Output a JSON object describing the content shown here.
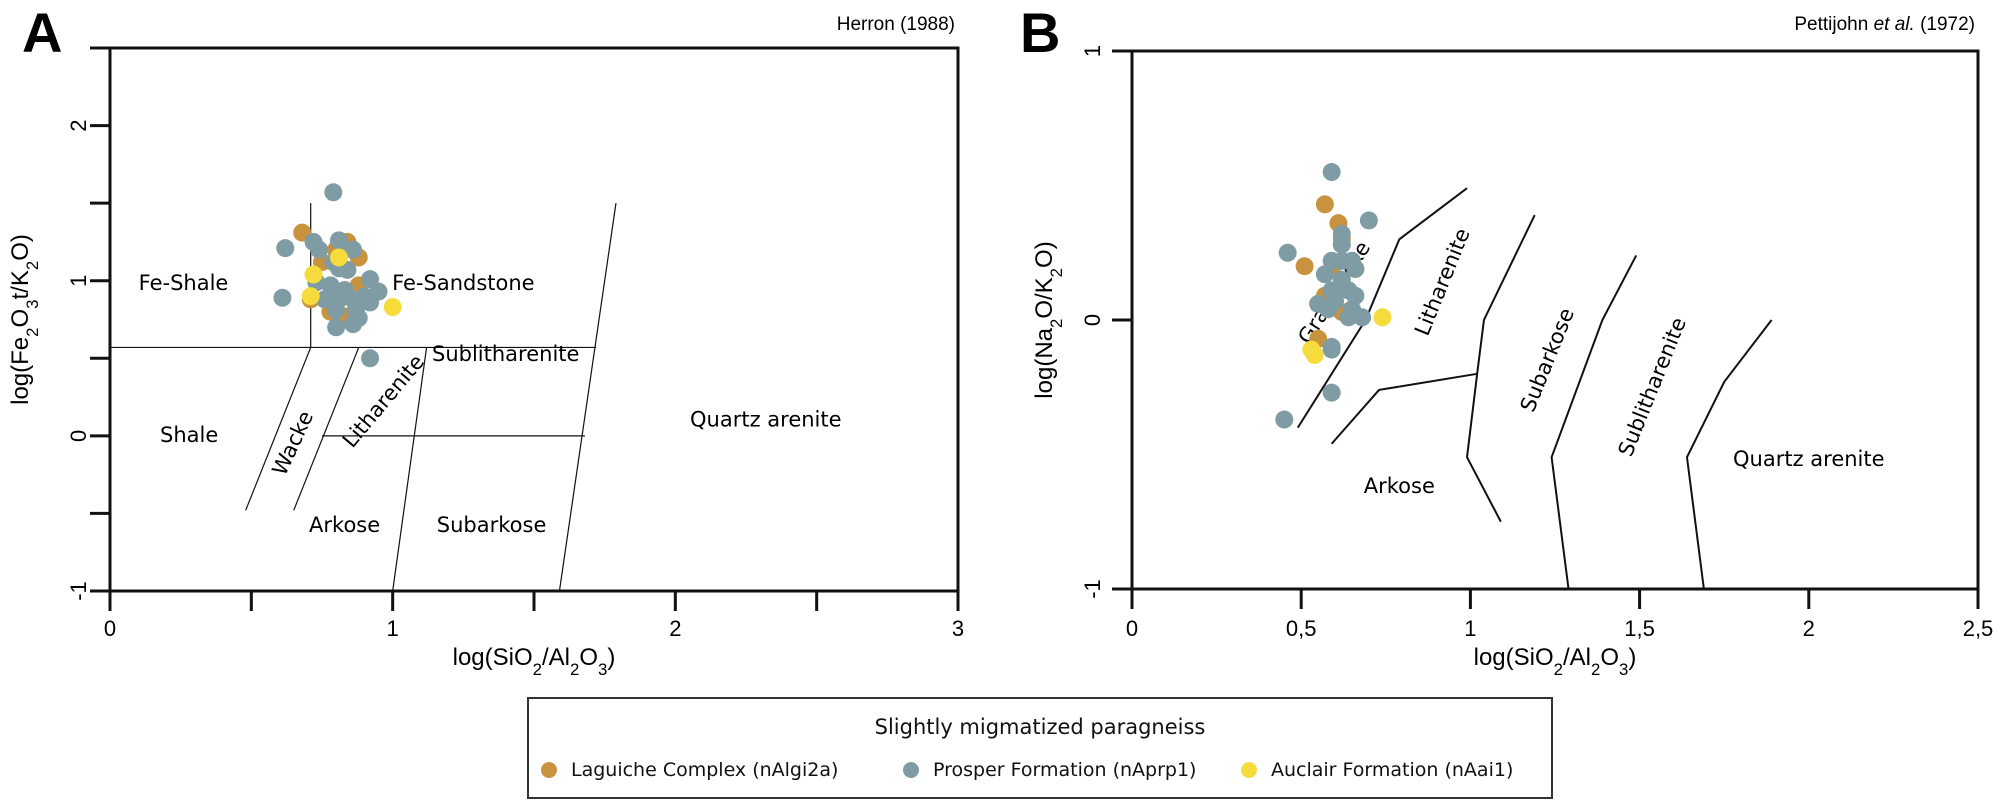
{
  "legend": {
    "title": "Slightly migmatized paragneiss",
    "items": [
      {
        "label": "Laguiche Complex (nAlgi2a)",
        "color": "#C8923E"
      },
      {
        "label": "Prosper Formation (nAprp1)",
        "color": "#7F9CA5"
      },
      {
        "label": "Auclair Formation (nAai1)",
        "color": "#F5DC3C"
      }
    ]
  },
  "chart_data": [
    {
      "panel": "A",
      "type": "scatter",
      "reference": "Herron (1988)",
      "xlabel": "log(SiO2/Al2O3)",
      "ylabel": "log(Fe2O3t/K2O)",
      "xlim": [
        0,
        3
      ],
      "ylim": [
        -1,
        2.5
      ],
      "xticks": [
        0,
        0.5,
        1,
        1.5,
        2,
        2.5,
        3
      ],
      "xtick_labels": [
        "0",
        "",
        "1",
        "",
        "2",
        "",
        "3"
      ],
      "yticks": [
        -1,
        -0.5,
        0,
        0.5,
        1,
        1.5,
        2,
        2.5
      ],
      "ytick_labels": [
        "-1",
        "",
        "0",
        "",
        "1",
        "",
        "2",
        ""
      ],
      "grid": false,
      "boundaries": [
        [
          [
            0.71,
            1.5
          ],
          [
            0.71,
            0.57
          ]
        ],
        [
          [
            0,
            0.57
          ],
          [
            1.72,
            0.57
          ]
        ],
        [
          [
            0.71,
            0.57
          ],
          [
            0.48,
            -0.48
          ]
        ],
        [
          [
            0.88,
            0.57
          ],
          [
            0.65,
            -0.48
          ]
        ],
        [
          [
            1.12,
            0.57
          ],
          [
            1.0,
            -1.0
          ]
        ],
        [
          [
            1.79,
            1.5
          ],
          [
            1.59,
            -1.0
          ]
        ],
        [
          [
            0.75,
            0
          ],
          [
            1.68,
            0
          ]
        ]
      ],
      "regions": [
        {
          "label": "Fe-Shale",
          "x": 0.26,
          "y": 0.98,
          "rotate": 0
        },
        {
          "label": "Fe-Sandstone",
          "x": 1.25,
          "y": 0.98,
          "rotate": 0
        },
        {
          "label": "Shale",
          "x": 0.28,
          "y": 0.0,
          "rotate": 0
        },
        {
          "label": "Wacke",
          "x": 0.65,
          "y": -0.05,
          "rotate": -65
        },
        {
          "label": "Litharenite",
          "x": 0.97,
          "y": 0.22,
          "rotate": -50
        },
        {
          "label": "Sublitharenite",
          "x": 1.4,
          "y": 0.52,
          "rotate": 0
        },
        {
          "label": "Quartz arenite",
          "x": 2.32,
          "y": 0.1,
          "rotate": 0
        },
        {
          "label": "Arkose",
          "x": 0.83,
          "y": -0.58,
          "rotate": 0
        },
        {
          "label": "Subarkose",
          "x": 1.35,
          "y": -0.58,
          "rotate": 0
        }
      ],
      "series": [
        {
          "name": "Laguiche Complex (nAlgi2a)",
          "color": "#C8923E",
          "points": [
            [
              0.68,
              1.31
            ],
            [
              0.84,
              1.25
            ],
            [
              0.83,
              1.21
            ],
            [
              0.75,
              1.12
            ],
            [
              0.88,
              1.15
            ],
            [
              0.88,
              0.97
            ],
            [
              0.71,
              0.88
            ],
            [
              0.78,
              0.8
            ],
            [
              0.84,
              0.77
            ],
            [
              0.8,
              1.2
            ]
          ]
        },
        {
          "name": "Prosper Formation (nAprp1)",
          "color": "#7F9CA5",
          "points": [
            [
              0.79,
              1.57
            ],
            [
              0.62,
              1.21
            ],
            [
              0.61,
              0.89
            ],
            [
              0.72,
              1.25
            ],
            [
              0.74,
              1.2
            ],
            [
              0.83,
              1.2
            ],
            [
              0.86,
              1.2
            ],
            [
              0.81,
              1.08
            ],
            [
              0.78,
              0.97
            ],
            [
              0.79,
              1.12
            ],
            [
              0.84,
              1.07
            ],
            [
              0.78,
              0.88
            ],
            [
              0.81,
              0.88
            ],
            [
              0.83,
              0.94
            ],
            [
              0.76,
              0.88
            ],
            [
              0.8,
              0.81
            ],
            [
              0.86,
              0.88
            ],
            [
              0.9,
              0.9
            ],
            [
              0.87,
              0.81
            ],
            [
              0.88,
              0.76
            ],
            [
              0.86,
              0.72
            ],
            [
              0.8,
              0.7
            ],
            [
              0.95,
              0.93
            ],
            [
              0.92,
              1.01
            ],
            [
              0.92,
              0.86
            ],
            [
              0.92,
              0.5
            ],
            [
              0.73,
              0.99
            ],
            [
              0.81,
              1.26
            ]
          ]
        },
        {
          "name": "Auclair Formation (nAai1)",
          "color": "#F5DC3C",
          "points": [
            [
              0.72,
              1.04
            ],
            [
              0.71,
              0.9
            ],
            [
              1.0,
              0.83
            ],
            [
              0.81,
              1.15
            ]
          ]
        }
      ]
    },
    {
      "panel": "B",
      "type": "scatter",
      "reference": "Pettijohn et al. (1972)",
      "xlabel": "log(SiO2/Al2O3)",
      "ylabel": "log(Na2O/K2O)",
      "xlim": [
        0,
        2.5
      ],
      "ylim": [
        -1,
        1
      ],
      "xticks": [
        0,
        0.5,
        1,
        1.5,
        2,
        2.5
      ],
      "xtick_labels": [
        "0",
        "0,5",
        "1",
        "1,5",
        "2",
        "2,5"
      ],
      "yticks": [
        -1,
        0,
        1
      ],
      "ytick_labels": [
        "-1",
        "0",
        "1"
      ],
      "grid": false,
      "boundaries": [
        [
          [
            0.49,
            -0.4
          ],
          [
            0.69,
            0.0
          ],
          [
            0.79,
            0.3
          ],
          [
            0.99,
            0.49
          ]
        ],
        [
          [
            0.59,
            -0.46
          ],
          [
            0.73,
            -0.26
          ],
          [
            1.02,
            -0.2
          ]
        ],
        [
          [
            1.19,
            0.39
          ],
          [
            1.04,
            0.0
          ],
          [
            1.02,
            -0.2
          ],
          [
            0.99,
            -0.51
          ],
          [
            1.09,
            -0.75
          ]
        ],
        [
          [
            1.49,
            0.24
          ],
          [
            1.39,
            0.0
          ],
          [
            1.24,
            -0.51
          ],
          [
            1.29,
            -1.0
          ]
        ],
        [
          [
            1.89,
            0.0
          ],
          [
            1.75,
            -0.23
          ],
          [
            1.64,
            -0.51
          ],
          [
            1.69,
            -1.0
          ]
        ]
      ],
      "regions": [
        {
          "label": "Graywacke",
          "x": 0.6,
          "y": 0.1,
          "rotate": -58
        },
        {
          "label": "Litharenite",
          "x": 0.92,
          "y": 0.14,
          "rotate": -68
        },
        {
          "label": "Subarkose",
          "x": 1.23,
          "y": -0.15,
          "rotate": -68
        },
        {
          "label": "Sublitharenite",
          "x": 1.54,
          "y": -0.25,
          "rotate": -68
        },
        {
          "label": "Quartz arenite",
          "x": 2.0,
          "y": -0.52,
          "rotate": 0
        },
        {
          "label": "Arkose",
          "x": 0.79,
          "y": -0.62,
          "rotate": 0
        }
      ],
      "series": [
        {
          "name": "Laguiche Complex (nAlgi2a)",
          "color": "#C8923E",
          "points": [
            [
              0.57,
              0.43
            ],
            [
              0.61,
              0.36
            ],
            [
              0.62,
              0.3
            ],
            [
              0.51,
              0.2
            ],
            [
              0.59,
              0.19
            ],
            [
              0.66,
              0.19
            ],
            [
              0.57,
              0.09
            ],
            [
              0.62,
              0.03
            ],
            [
              0.55,
              -0.07
            ]
          ]
        },
        {
          "name": "Prosper Formation (nAprp1)",
          "color": "#7F9CA5",
          "points": [
            [
              0.59,
              0.55
            ],
            [
              0.7,
              0.37
            ],
            [
              0.46,
              0.25
            ],
            [
              0.62,
              0.32
            ],
            [
              0.62,
              0.28
            ],
            [
              0.59,
              0.22
            ],
            [
              0.62,
              0.22
            ],
            [
              0.65,
              0.22
            ],
            [
              0.66,
              0.19
            ],
            [
              0.57,
              0.17
            ],
            [
              0.62,
              0.15
            ],
            [
              0.59,
              0.11
            ],
            [
              0.64,
              0.11
            ],
            [
              0.66,
              0.09
            ],
            [
              0.55,
              0.06
            ],
            [
              0.6,
              0.07
            ],
            [
              0.65,
              0.04
            ],
            [
              0.64,
              0.01
            ],
            [
              0.68,
              0.01
            ],
            [
              0.58,
              0.04
            ],
            [
              0.59,
              -0.1
            ],
            [
              0.59,
              -0.11
            ],
            [
              0.59,
              -0.27
            ],
            [
              0.45,
              -0.37
            ]
          ]
        },
        {
          "name": "Auclair Formation (nAai1)",
          "color": "#F5DC3C",
          "points": [
            [
              0.74,
              0.01
            ],
            [
              0.53,
              -0.11
            ],
            [
              0.54,
              -0.13
            ]
          ]
        }
      ]
    }
  ]
}
